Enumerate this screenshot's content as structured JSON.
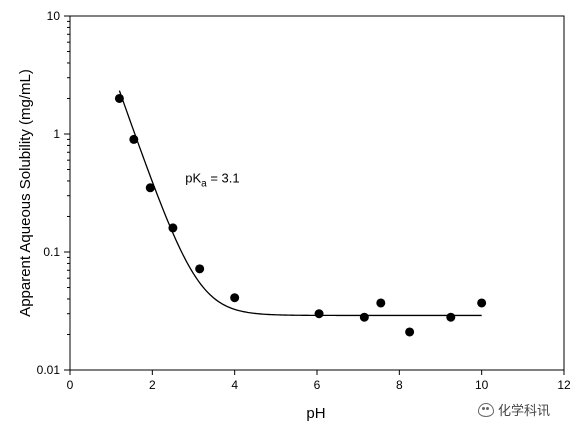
{
  "chart_data": {
    "type": "scatter",
    "xlabel": "pH",
    "ylabel": "Apparent Aqueous Solubility (mg/mL)",
    "xlim": [
      0,
      12
    ],
    "ylim": [
      0.01,
      10
    ],
    "yscale": "log",
    "x_ticks": [
      0,
      2,
      4,
      6,
      8,
      10,
      12
    ],
    "y_ticks": [
      0.01,
      0.1,
      1,
      10
    ],
    "y_tick_labels": [
      "0.01",
      "0.1",
      "1",
      "10"
    ],
    "grid": false,
    "series": [
      {
        "kind": "points",
        "marker": "filled-circle",
        "color": "#000000",
        "x": [
          1.2,
          1.55,
          1.95,
          2.5,
          3.15,
          4.0,
          6.05,
          7.15,
          7.55,
          8.25,
          9.25,
          10.0
        ],
        "y": [
          2.0,
          0.9,
          0.35,
          0.16,
          0.072,
          0.041,
          0.03,
          0.028,
          0.037,
          0.021,
          0.028,
          0.037
        ]
      },
      {
        "kind": "fit-line",
        "color": "#000000",
        "model": "S = S0 * (1 + 10^(pKa - pH))",
        "S0": 0.029,
        "pKa": 3.1,
        "x_range": [
          1.2,
          10.0
        ]
      }
    ],
    "annotations": [
      {
        "text_main": "pK",
        "text_sub": "a",
        "text_rest": " = 3.1",
        "x": 2.8,
        "y": 0.42
      }
    ]
  },
  "watermark": {
    "text": "化学科讯",
    "icon": "chat-bubble-icon"
  }
}
